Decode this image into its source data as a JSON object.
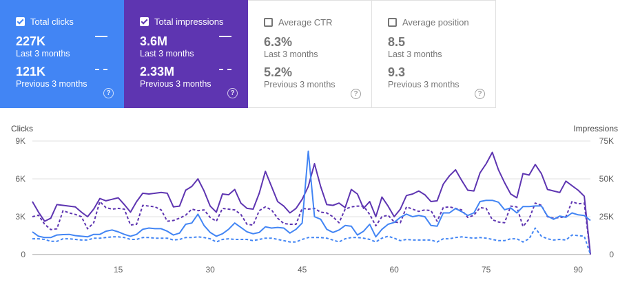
{
  "metrics": {
    "clicks": {
      "label": "Total clicks",
      "checked": true,
      "current_value": "227K",
      "current_period": "Last 3 months",
      "previous_value": "121K",
      "previous_period": "Previous 3 months",
      "help": "?"
    },
    "impressions": {
      "label": "Total impressions",
      "checked": true,
      "current_value": "3.6M",
      "current_period": "Last 3 months",
      "previous_value": "2.33M",
      "previous_period": "Previous 3 months",
      "help": "?"
    },
    "ctr": {
      "label": "Average CTR",
      "checked": false,
      "current_value": "6.3%",
      "current_period": "Last 3 months",
      "previous_value": "5.2%",
      "previous_period": "Previous 3 months",
      "help": "?"
    },
    "position": {
      "label": "Average position",
      "checked": false,
      "current_value": "8.5",
      "current_period": "Last 3 months",
      "previous_value": "9.3",
      "previous_period": "Previous 3 months",
      "help": "?"
    }
  },
  "colors": {
    "clicks": "#4285f4",
    "impressions": "#5e35b1",
    "grid": "#e0e0e0"
  },
  "chart_data": {
    "type": "line",
    "ylabel_left": "Clicks",
    "ylabel_right": "Impressions",
    "left_ticks": [
      "0",
      "3K",
      "6K",
      "9K"
    ],
    "right_ticks": [
      "0",
      "25K",
      "50K",
      "75K"
    ],
    "x_ticks": [
      "15",
      "30",
      "45",
      "60",
      "75",
      "90"
    ],
    "ylim_left": [
      0,
      9000
    ],
    "ylim_right": [
      0,
      75000
    ],
    "xlim": [
      1,
      92
    ],
    "grid": true,
    "series": [
      {
        "metric": "impressions",
        "style": "solid",
        "axis": "right",
        "values": [
          35000,
          28000,
          22000,
          24000,
          33000,
          32500,
          32000,
          31500,
          28000,
          25000,
          30000,
          37000,
          35500,
          36500,
          37500,
          33000,
          28000,
          35000,
          40500,
          40000,
          40500,
          41000,
          40500,
          31500,
          32000,
          42500,
          45000,
          50000,
          42000,
          32000,
          28000,
          40000,
          39500,
          43000,
          34000,
          30500,
          30000,
          40500,
          55000,
          45000,
          35000,
          32000,
          27500,
          30500,
          36500,
          45000,
          60000,
          45000,
          33000,
          32500,
          34000,
          31000,
          43000,
          40000,
          30500,
          35000,
          25000,
          38000,
          32000,
          25000,
          30000,
          39000,
          40000,
          42000,
          39500,
          35000,
          35500,
          46500,
          52000,
          56000,
          49000,
          42500,
          42000,
          54000,
          60000,
          67500,
          56000,
          47500,
          40000,
          37500,
          53500,
          52500,
          59500,
          53500,
          43000,
          42000,
          41000,
          48500,
          45500,
          42500,
          38500,
          0
        ]
      },
      {
        "metric": "impressions",
        "style": "dashed",
        "axis": "right",
        "values": [
          25000,
          26000,
          20000,
          16500,
          17000,
          29000,
          27500,
          26500,
          25000,
          17000,
          21000,
          35000,
          31000,
          30000,
          30500,
          30000,
          19500,
          20000,
          32500,
          32000,
          31500,
          29500,
          22000,
          22500,
          24000,
          26000,
          30000,
          29000,
          29500,
          24500,
          22000,
          30500,
          30000,
          29500,
          26500,
          20000,
          19500,
          29000,
          31500,
          29500,
          24000,
          20500,
          20000,
          20000,
          30500,
          30000,
          30500,
          28000,
          27500,
          25000,
          21000,
          30000,
          31500,
          32000,
          32000,
          26500,
          19000,
          25000,
          26000,
          21500,
          21000,
          31500,
          30000,
          28500,
          29500,
          29000,
          22000,
          31000,
          31500,
          30500,
          29500,
          24500,
          26000,
          31000,
          30500,
          23000,
          21500,
          21000,
          32000,
          31500,
          18500,
          23500,
          34000,
          32500,
          25000,
          24000,
          24500,
          25000,
          35000,
          33500,
          34000,
          0
        ]
      },
      {
        "metric": "clicks",
        "style": "solid",
        "axis": "left",
        "values": [
          1800,
          1450,
          1350,
          1350,
          1550,
          1580,
          1600,
          1500,
          1450,
          1400,
          1600,
          1600,
          1850,
          1950,
          1800,
          1600,
          1450,
          1600,
          2000,
          2100,
          2050,
          2050,
          1850,
          1550,
          1700,
          2400,
          2500,
          3200,
          2300,
          1750,
          1450,
          1650,
          2000,
          2500,
          2150,
          1800,
          1650,
          1750,
          2200,
          2100,
          2150,
          2100,
          1700,
          2000,
          2500,
          8200,
          3000,
          2800,
          2000,
          1750,
          1950,
          2300,
          2250,
          1550,
          1850,
          2400,
          1400,
          2000,
          2400,
          2550,
          2950,
          3200,
          3000,
          3100,
          3000,
          2300,
          2250,
          3300,
          3300,
          3650,
          3400,
          3100,
          3300,
          4200,
          4300,
          4300,
          4150,
          3550,
          3700,
          3300,
          3800,
          3800,
          3850,
          3850,
          3050,
          2800,
          3050,
          2950,
          3300,
          3150,
          3100,
          2700
        ]
      },
      {
        "metric": "clicks",
        "style": "dashed",
        "axis": "left",
        "values": [
          1250,
          1250,
          1200,
          1050,
          1050,
          1250,
          1250,
          1200,
          1150,
          1150,
          1300,
          1300,
          1350,
          1400,
          1400,
          1350,
          1200,
          1200,
          1350,
          1350,
          1300,
          1300,
          1300,
          1150,
          1200,
          1350,
          1350,
          1400,
          1350,
          1250,
          1000,
          1200,
          1250,
          1200,
          1200,
          1200,
          1100,
          1200,
          1300,
          1300,
          1200,
          1100,
          1000,
          1000,
          1200,
          1350,
          1350,
          1350,
          1300,
          1150,
          1000,
          1250,
          1350,
          1350,
          1300,
          1200,
          1000,
          1300,
          1450,
          1300,
          1100,
          1200,
          1150,
          1150,
          1150,
          1150,
          1000,
          1250,
          1250,
          1350,
          1400,
          1350,
          1300,
          1350,
          1300,
          1200,
          1100,
          1100,
          1250,
          1250,
          1000,
          1250,
          2100,
          1450,
          1250,
          1150,
          1200,
          1150,
          1550,
          1500,
          1450,
          0
        ]
      }
    ]
  }
}
